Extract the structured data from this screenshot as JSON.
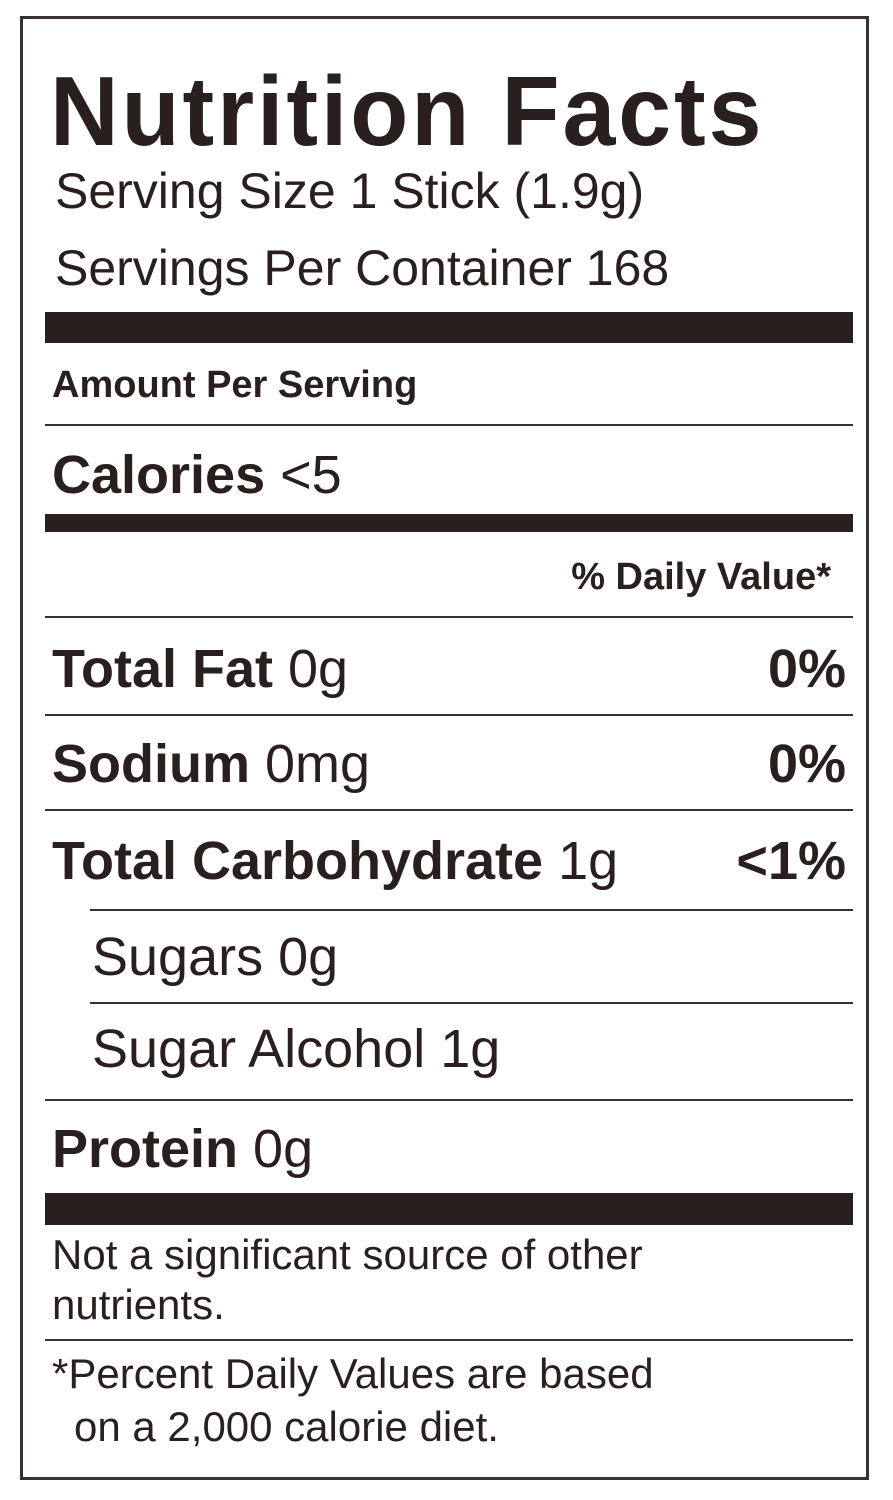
{
  "title": "Nutrition Facts",
  "serving_size": "Serving Size 1 Stick (1.9g)",
  "servings_per_container": "Servings Per Container 168",
  "amount_per_serving": "Amount Per Serving",
  "calories": {
    "label": "Calories",
    "value": "<5"
  },
  "daily_value_header": "% Daily Value*",
  "nutrients": [
    {
      "label": "Total Fat",
      "amount": "0g",
      "dv": "0%"
    },
    {
      "label": "Sodium",
      "amount": "0mg",
      "dv": "0%"
    },
    {
      "label": "Total Carbohydrate",
      "amount": "1g",
      "dv": "<1%"
    },
    {
      "label": "Sugars 0g"
    },
    {
      "label": "Sugar Alcohol 1g"
    },
    {
      "label": "Protein",
      "amount": "0g"
    }
  ],
  "note_line1": "Not a significant source of other",
  "note_line2": "nutrients.",
  "footnote_line1": "*Percent Daily Values are based",
  "footnote_line2": "on a 2,000 calorie diet."
}
